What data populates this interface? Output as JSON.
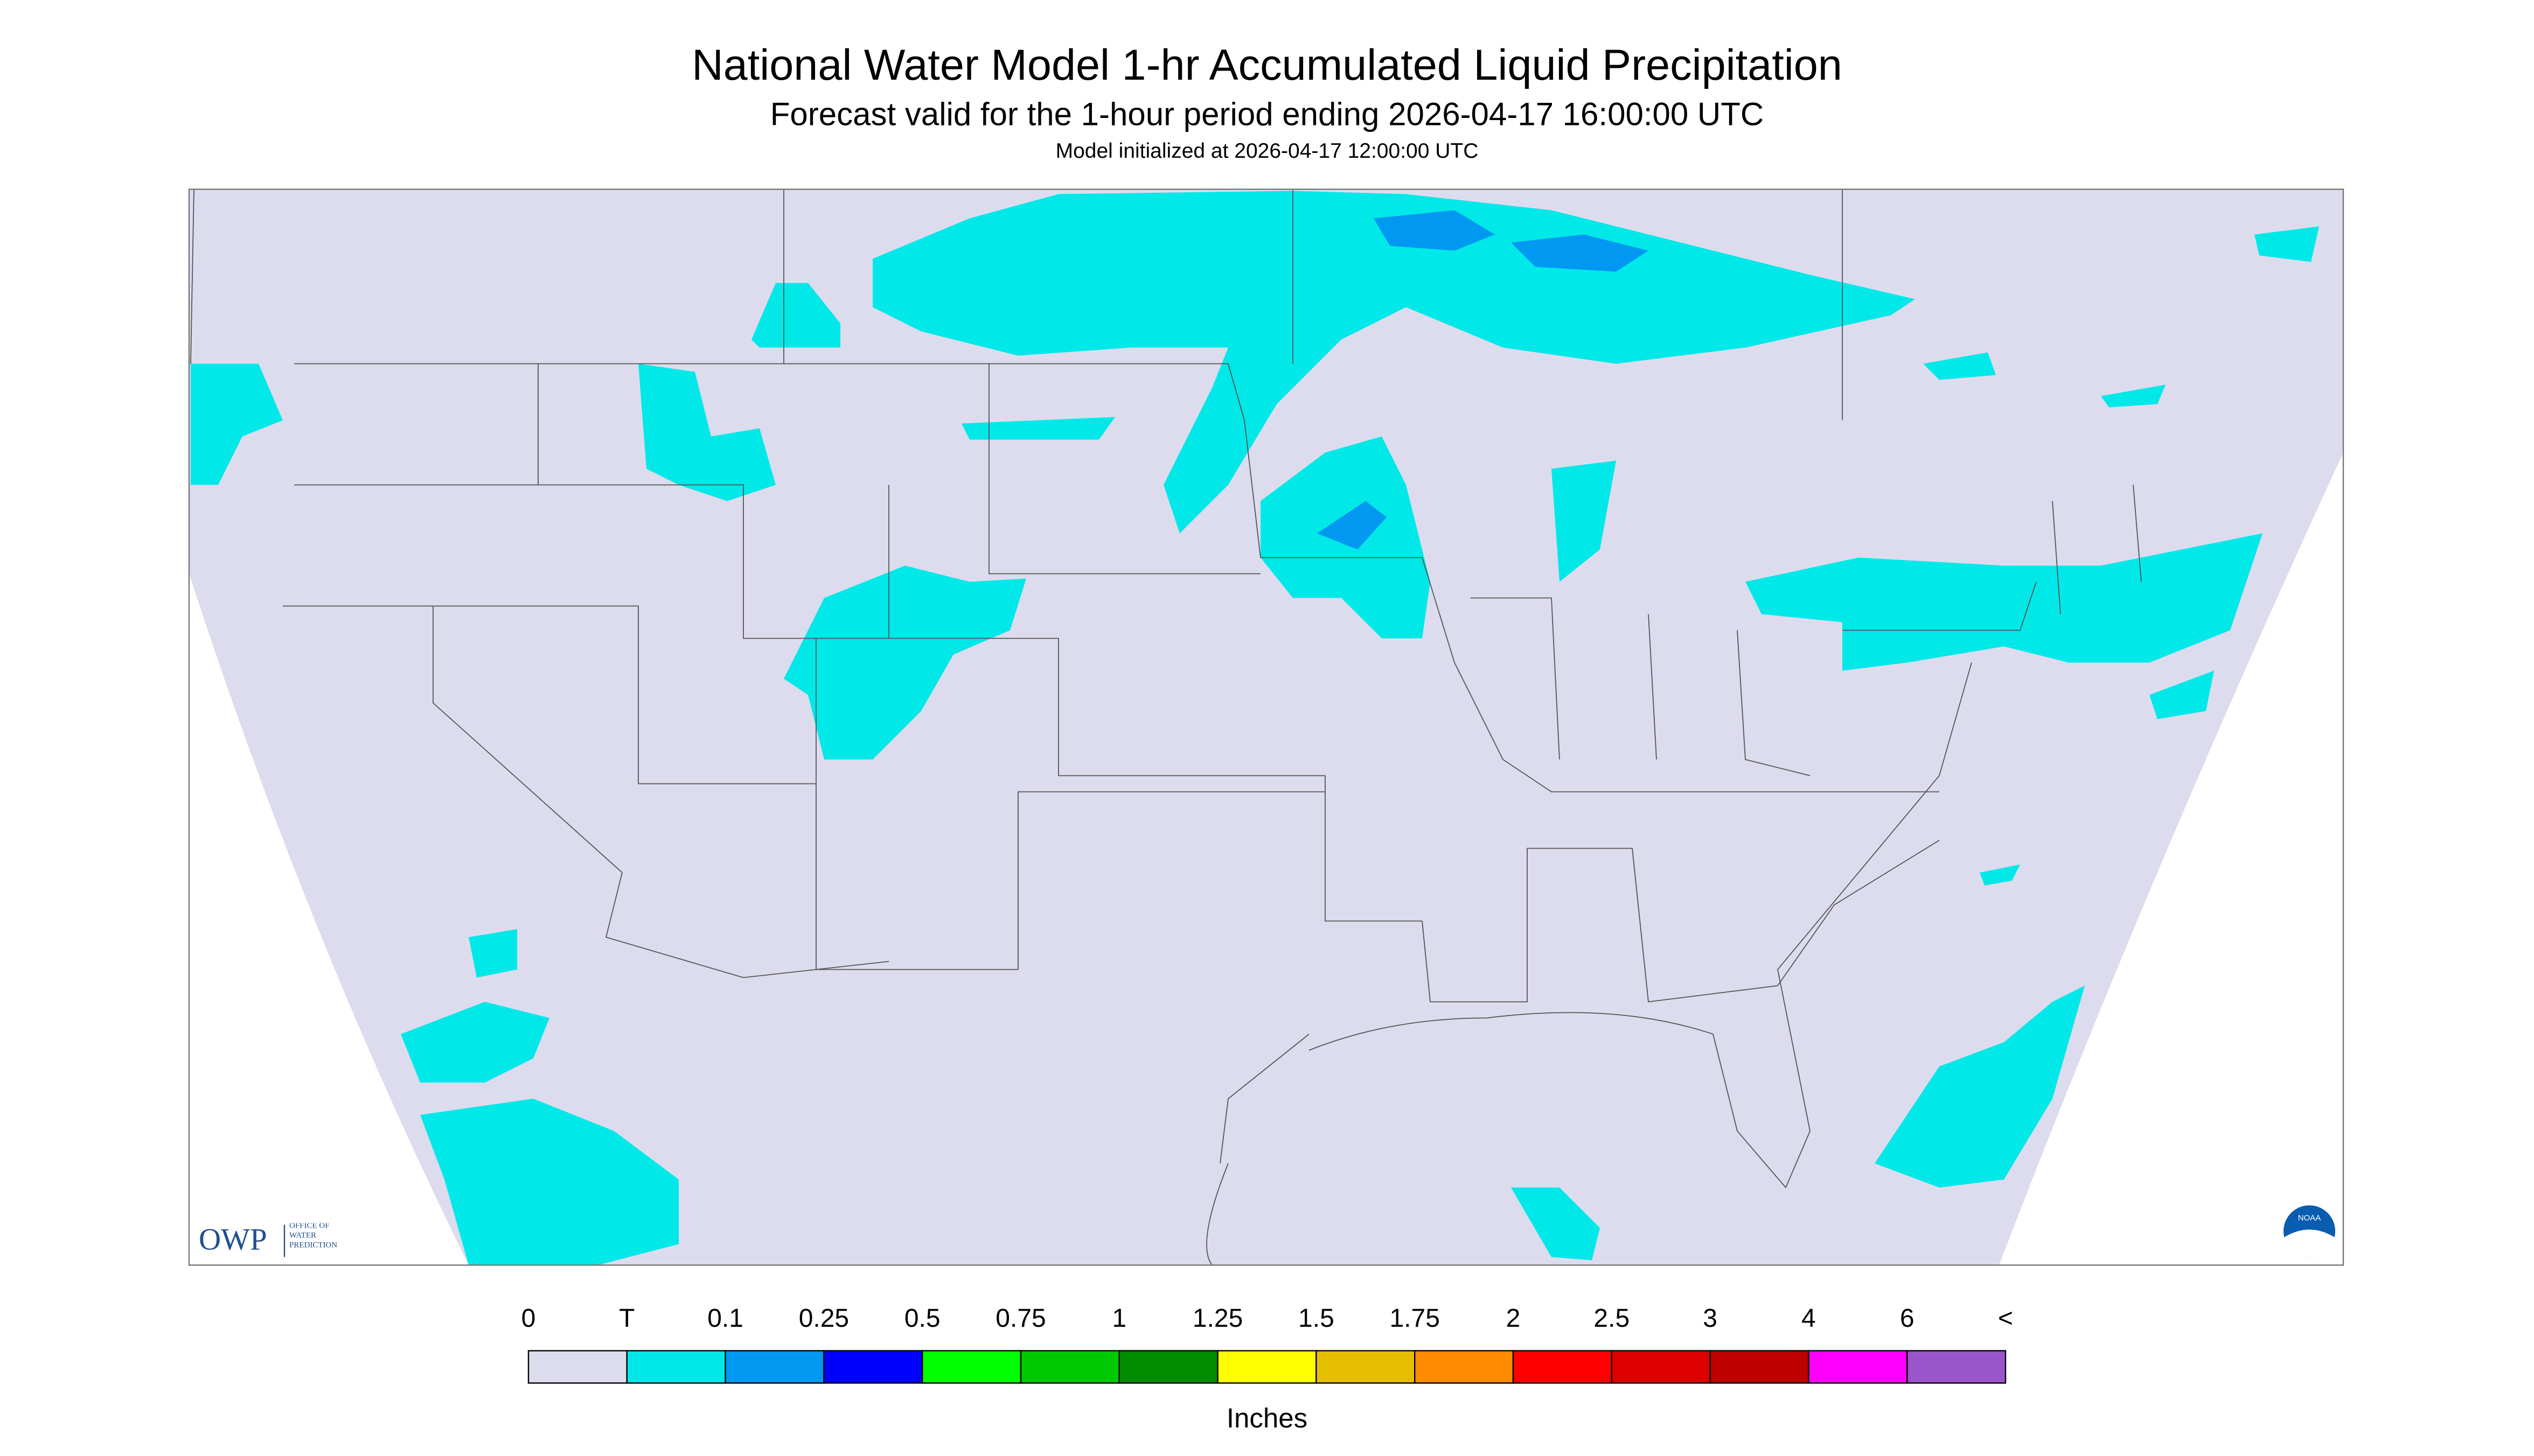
{
  "header": {
    "title": "National Water Model 1-hr Accumulated Liquid Precipitation",
    "subtitle": "Forecast valid for the 1-hour period ending 2026-04-17 16:00:00 UTC",
    "init": "Model initialized at 2026-04-17 12:00:00 UTC"
  },
  "legend": {
    "labels": [
      "0",
      "T",
      "0.1",
      "0.25",
      "0.5",
      "0.75",
      "1",
      "1.25",
      "1.5",
      "1.75",
      "2",
      "2.5",
      "3",
      "4",
      "6",
      "<"
    ],
    "colors": [
      "#dcdcee",
      "#00e8e8",
      "#0098f0",
      "#0000ff",
      "#00ff00",
      "#00c800",
      "#008c00",
      "#ffff00",
      "#e6be00",
      "#ff8c00",
      "#ff0000",
      "#dc0000",
      "#be0000",
      "#ff00ff",
      "#9955c9"
    ],
    "units": "Inches"
  },
  "logos": {
    "owp": "OWP",
    "owp_text": "OFFICE OF WATER PREDICTION",
    "noaa": "NOAA"
  }
}
